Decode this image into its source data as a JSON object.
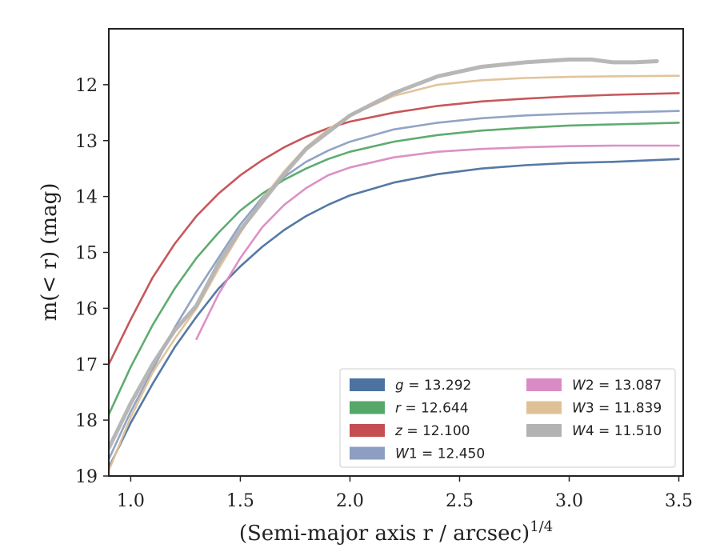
{
  "chart_data": {
    "type": "line",
    "xlabel": "(Semi-major axis r / arcsec)",
    "xlabel_exponent": "1/4",
    "ylabel": "m(< r) (mag)",
    "xlim": [
      0.9,
      3.52
    ],
    "ylim": [
      19.0,
      11.0
    ],
    "y_inverted": true,
    "grid": false,
    "legend_position": "lower-right",
    "x_ticks": [
      1.0,
      1.5,
      2.0,
      2.5,
      3.0,
      3.5
    ],
    "x_tick_labels": [
      "1.0",
      "1.5",
      "2.0",
      "2.5",
      "3.0",
      "3.5"
    ],
    "y_ticks": [
      12,
      13,
      14,
      15,
      16,
      17,
      18,
      19
    ],
    "y_tick_labels": [
      "12",
      "13",
      "14",
      "15",
      "16",
      "17",
      "18",
      "19"
    ],
    "series": [
      {
        "name": "g = 13.292",
        "band": "g",
        "mag": "13.292",
        "color": "#4c72a0",
        "x": [
          0.9,
          1.0,
          1.1,
          1.2,
          1.3,
          1.4,
          1.5,
          1.6,
          1.7,
          1.8,
          1.9,
          2.0,
          2.2,
          2.4,
          2.6,
          2.8,
          3.0,
          3.2,
          3.5
        ],
        "y": [
          18.85,
          18.05,
          17.35,
          16.7,
          16.15,
          15.65,
          15.25,
          14.9,
          14.6,
          14.35,
          14.15,
          13.98,
          13.75,
          13.6,
          13.5,
          13.44,
          13.4,
          13.38,
          13.33
        ]
      },
      {
        "name": "r = 12.644",
        "band": "r",
        "mag": "12.644",
        "color": "#55a868",
        "x": [
          0.9,
          1.0,
          1.1,
          1.2,
          1.3,
          1.4,
          1.5,
          1.6,
          1.7,
          1.8,
          1.9,
          2.0,
          2.2,
          2.4,
          2.6,
          2.8,
          3.0,
          3.2,
          3.5
        ],
        "y": [
          17.9,
          17.05,
          16.3,
          15.65,
          15.1,
          14.65,
          14.25,
          13.95,
          13.7,
          13.5,
          13.33,
          13.2,
          13.02,
          12.9,
          12.82,
          12.77,
          12.73,
          12.71,
          12.68
        ]
      },
      {
        "name": "z = 12.100",
        "band": "z",
        "mag": "12.100",
        "color": "#c44e52",
        "x": [
          0.9,
          1.0,
          1.1,
          1.2,
          1.3,
          1.4,
          1.5,
          1.6,
          1.7,
          1.8,
          1.9,
          2.0,
          2.2,
          2.4,
          2.6,
          2.8,
          3.0,
          3.2,
          3.5
        ],
        "y": [
          17.0,
          16.2,
          15.45,
          14.85,
          14.35,
          13.95,
          13.62,
          13.35,
          13.12,
          12.93,
          12.78,
          12.66,
          12.5,
          12.38,
          12.3,
          12.25,
          12.21,
          12.18,
          12.15
        ]
      },
      {
        "name": "W1 = 12.450",
        "band": "W1",
        "mag": "12.450",
        "color": "#8c9fc2",
        "x": [
          0.9,
          1.0,
          1.1,
          1.2,
          1.3,
          1.4,
          1.5,
          1.6,
          1.7,
          1.8,
          1.9,
          2.0,
          2.2,
          2.4,
          2.6,
          2.8,
          3.0,
          3.2,
          3.5
        ],
        "y": [
          18.7,
          17.85,
          17.1,
          16.35,
          15.7,
          15.1,
          14.5,
          14.02,
          13.65,
          13.38,
          13.18,
          13.02,
          12.8,
          12.68,
          12.6,
          12.55,
          12.52,
          12.5,
          12.47
        ]
      },
      {
        "name": "W2 = 13.087",
        "band": "W2",
        "mag": "13.087",
        "color": "#da8bc3",
        "x": [
          1.3,
          1.4,
          1.5,
          1.6,
          1.7,
          1.8,
          1.9,
          2.0,
          2.2,
          2.4,
          2.6,
          2.8,
          3.0,
          3.2,
          3.5
        ],
        "y": [
          16.55,
          15.75,
          15.1,
          14.55,
          14.15,
          13.85,
          13.62,
          13.48,
          13.3,
          13.2,
          13.15,
          13.12,
          13.1,
          13.09,
          13.09
        ]
      },
      {
        "name": "W3 = 11.839",
        "band": "W3",
        "mag": "11.839",
        "color": "#dfc197",
        "x": [
          0.9,
          1.0,
          1.1,
          1.2,
          1.3,
          1.4,
          1.5,
          1.6,
          1.7,
          1.8,
          1.9,
          2.0,
          2.2,
          2.4,
          2.6,
          2.8,
          3.0,
          3.2,
          3.5
        ],
        "y": [
          18.9,
          17.95,
          17.15,
          16.55,
          16.0,
          15.3,
          14.65,
          14.05,
          13.55,
          13.12,
          12.8,
          12.55,
          12.2,
          12.0,
          11.92,
          11.88,
          11.86,
          11.85,
          11.84
        ]
      },
      {
        "name": "W4 = 11.510",
        "band": "W4",
        "mag": "11.510",
        "color": "#b3b3b3",
        "x": [
          0.9,
          1.0,
          1.1,
          1.2,
          1.3,
          1.4,
          1.5,
          1.6,
          1.7,
          1.8,
          1.9,
          2.0,
          2.2,
          2.4,
          2.6,
          2.8,
          3.0,
          3.1,
          3.2,
          3.3,
          3.4
        ],
        "y": [
          18.5,
          17.7,
          17.0,
          16.4,
          15.95,
          15.2,
          14.6,
          14.1,
          13.6,
          13.15,
          12.85,
          12.55,
          12.15,
          11.85,
          11.68,
          11.6,
          11.55,
          11.55,
          11.6,
          11.6,
          11.58
        ]
      }
    ]
  }
}
